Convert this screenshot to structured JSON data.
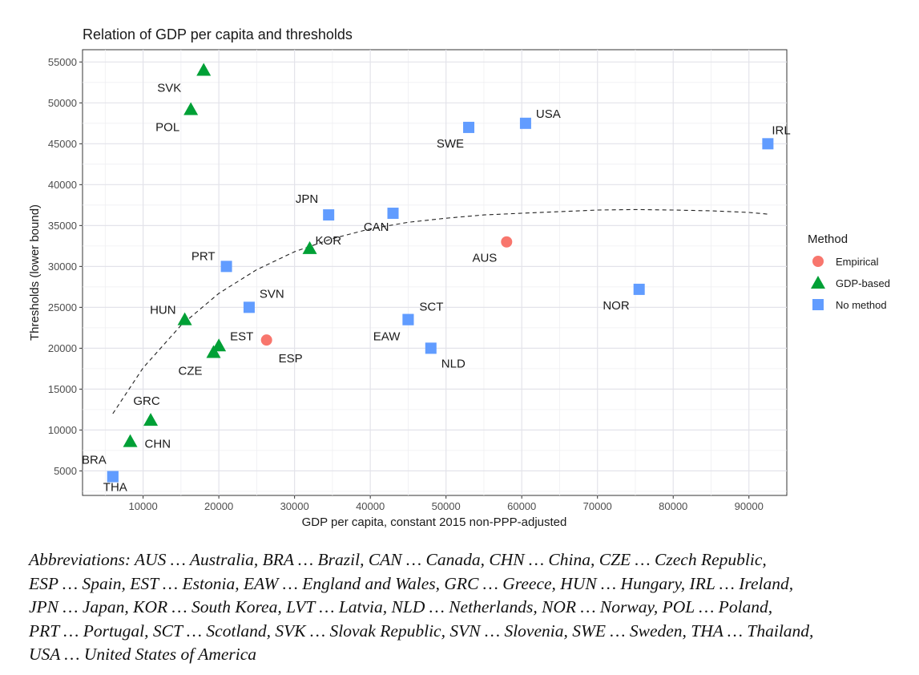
{
  "chart_data": {
    "type": "scatter",
    "title": "Relation of GDP per capita and thresholds",
    "xlabel": "GDP per capita, constant 2015 non-PPP-adjusted",
    "ylabel": "Thresholds (lower bound)",
    "xlim": [
      2000,
      95000
    ],
    "ylim": [
      2000,
      56500
    ],
    "xticks": [
      10000,
      20000,
      30000,
      40000,
      50000,
      60000,
      70000,
      80000,
      90000
    ],
    "yticks": [
      5000,
      10000,
      15000,
      20000,
      25000,
      30000,
      35000,
      40000,
      45000,
      50000,
      55000
    ],
    "grid": true,
    "legend": {
      "title": "Method",
      "position": "right",
      "entries": [
        {
          "name": "Empirical",
          "shape": "circle",
          "color": "#F8766D"
        },
        {
          "name": "GDP-based",
          "shape": "triangle",
          "color": "#00A036"
        },
        {
          "name": "No method",
          "shape": "square",
          "color": "#619CFF"
        }
      ]
    },
    "series": [
      {
        "name": "Empirical",
        "shape": "circle",
        "color": "#F8766D",
        "points": [
          {
            "label": "AUS",
            "x": 58000,
            "y": 33000
          },
          {
            "label": "ESP",
            "x": 26300,
            "y": 21000
          }
        ]
      },
      {
        "name": "GDP-based",
        "shape": "triangle",
        "color": "#00A036",
        "points": [
          {
            "label": "SVK",
            "x": 18000,
            "y": 54000
          },
          {
            "label": "POL",
            "x": 16300,
            "y": 49200
          },
          {
            "label": "KOR",
            "x": 32000,
            "y": 32200
          },
          {
            "label": "HUN",
            "x": 15500,
            "y": 23500
          },
          {
            "label": "EST",
            "x": 20000,
            "y": 20300
          },
          {
            "label": "CZE",
            "x": 19300,
            "y": 19500
          },
          {
            "label": "GRC",
            "x": 11000,
            "y": 11200
          },
          {
            "label": "CHN",
            "x": 8300,
            "y": 8600
          }
        ]
      },
      {
        "name": "No method",
        "shape": "square",
        "color": "#619CFF",
        "points": [
          {
            "label": "USA",
            "x": 60500,
            "y": 47500
          },
          {
            "label": "SWE",
            "x": 53000,
            "y": 47000
          },
          {
            "label": "IRL",
            "x": 92500,
            "y": 45000
          },
          {
            "label": "JPN",
            "x": 34500,
            "y": 36300
          },
          {
            "label": "CAN",
            "x": 43000,
            "y": 36500
          },
          {
            "label": "PRT",
            "x": 21000,
            "y": 30000
          },
          {
            "label": "SVN",
            "x": 24000,
            "y": 25000
          },
          {
            "label": "SCT",
            "x": 45000,
            "y": 23500
          },
          {
            "label": "EAW",
            "x": 45000,
            "y": 23500
          },
          {
            "label": "NLD",
            "x": 48000,
            "y": 20000
          },
          {
            "label": "NOR",
            "x": 75500,
            "y": 27200
          },
          {
            "label": "BRA",
            "x": 6000,
            "y": 4300
          },
          {
            "label": "THA",
            "x": 6000,
            "y": 4300
          }
        ]
      }
    ],
    "trend_line": {
      "style": "dashed",
      "points": [
        [
          6000,
          12000
        ],
        [
          10000,
          17600
        ],
        [
          15000,
          22800
        ],
        [
          20000,
          26700
        ],
        [
          25000,
          29600
        ],
        [
          30000,
          31800
        ],
        [
          35000,
          33400
        ],
        [
          40000,
          34600
        ],
        [
          45000,
          35400
        ],
        [
          50000,
          35900
        ],
        [
          55000,
          36300
        ],
        [
          60000,
          36500
        ],
        [
          65000,
          36700
        ],
        [
          70000,
          36900
        ],
        [
          75000,
          36950
        ],
        [
          80000,
          36900
        ],
        [
          85000,
          36800
        ],
        [
          90000,
          36600
        ],
        [
          92500,
          36400
        ]
      ]
    }
  },
  "notes": [
    "Abbreviations: AUS … Australia, BRA … Brazil, CAN … Canada, CHN … China, CZE … Czech Republic,",
    "ESP … Spain, EST … Estonia, EAW … England and Wales, GRC … Greece, HUN … Hungary, IRL … Ireland,",
    "JPN … Japan, KOR … South Korea, LVT … Latvia, NLD … Netherlands, NOR … Norway, POL … Poland,",
    "PRT … Portugal, SCT … Scotland, SVK … Slovak Republic, SVN … Slovenia, SWE … Sweden, THA … Thailand,",
    "USA … United States of America"
  ]
}
